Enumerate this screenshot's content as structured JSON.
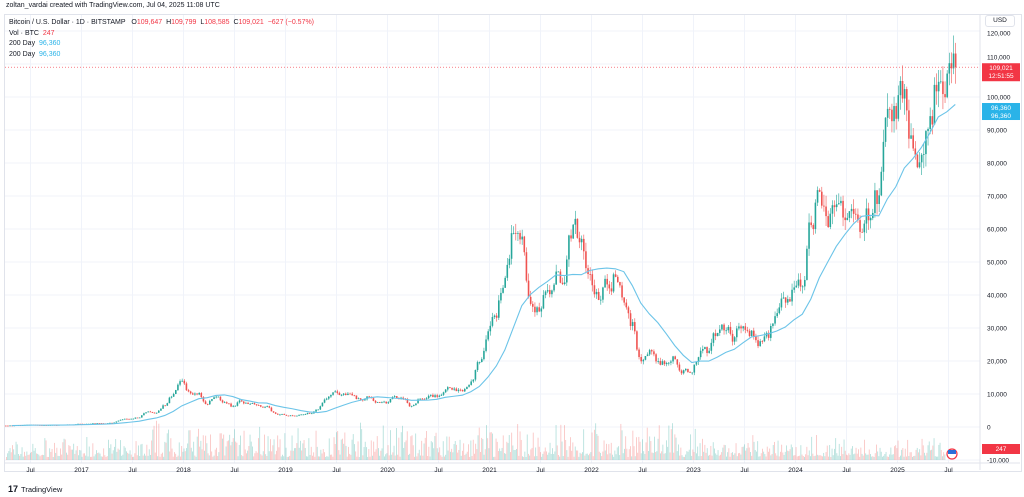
{
  "credit": "zoltan_vardai created with TradingView.com, Jul 04, 2025 11:08 UTC",
  "legend": {
    "symbol": "Bitcoin / U.S. Dollar · 1D · BITSTAMP",
    "o_label": "O",
    "o": "109,647",
    "h_label": "H",
    "h": "109,799",
    "l_label": "L",
    "l": "108,585",
    "c_label": "C",
    "c": "109,021",
    "change": "−627 (−0.57%)",
    "vol_label": "Vol · BTC",
    "vol": "247",
    "ma1_label": "200 Day",
    "ma1": "96,360",
    "ma2_label": "200 Day",
    "ma2": "96,360"
  },
  "currency": "USD",
  "price_tag": {
    "price": "109,021",
    "countdown": "12:51:55"
  },
  "ma_tags": [
    "96,360",
    "96,360"
  ],
  "volume_tag": "247",
  "brand": "TradingView",
  "colors": {
    "up": "#26a69a",
    "down": "#ef5350",
    "ma": "#6cc4e8",
    "price_tag": "#f23645",
    "ma_tag": "#2ab3e8"
  },
  "chart_data": {
    "type": "candlestick",
    "title": "",
    "y_ticks": [
      "120,000",
      "110,000",
      "100,000",
      "90,000",
      "80,000",
      "70,000",
      "60,000",
      "50,000",
      "40,000",
      "30,000",
      "20,000",
      "10,000",
      "0",
      "-10,000"
    ],
    "x_ticks": [
      "Jul",
      "2017",
      "Jul",
      "2018",
      "Jul",
      "2019",
      "Jul",
      "2020",
      "Jul",
      "2021",
      "Jul",
      "2022",
      "Jul",
      "2023",
      "Jul",
      "2024",
      "Jul",
      "2025",
      "Jul"
    ],
    "ylim": [
      -10000,
      120000
    ],
    "grid": true,
    "period_start": "2016-04",
    "monthly_close": [
      450,
      530,
      670,
      620,
      570,
      610,
      700,
      740,
      960,
      970,
      1190,
      1080,
      1350,
      2300,
      2500,
      2880,
      4700,
      4340,
      6450,
      10000,
      14000,
      10200,
      10300,
      6900,
      9200,
      7500,
      6400,
      7700,
      7000,
      6600,
      6300,
      4000,
      3700,
      3450,
      3800,
      4100,
      5300,
      8600,
      10800,
      10100,
      9600,
      8300,
      9150,
      7550,
      7200,
      9350,
      8600,
      6400,
      8600,
      9450,
      9150,
      11350,
      11650,
      10800,
      13800,
      19700,
      29000,
      33100,
      45200,
      58800,
      57700,
      37300,
      35000,
      41500,
      47100,
      43800,
      61300,
      57000,
      46300,
      38500,
      43200,
      45500,
      37700,
      31800,
      19900,
      23300,
      20000,
      19400,
      20500,
      17200,
      16500,
      23100,
      23100,
      28500,
      29300,
      27200,
      30500,
      29200,
      26000,
      27000,
      34500,
      37700,
      42300,
      42600,
      61200,
      71300,
      60600,
      67500,
      62700,
      64600,
      59000,
      63300,
      70200,
      96400,
      93400,
      102400,
      84400,
      82500,
      94200,
      104600,
      107100,
      109021
    ],
    "series": [
      {
        "name": "200 Day",
        "last": 96360
      }
    ]
  }
}
